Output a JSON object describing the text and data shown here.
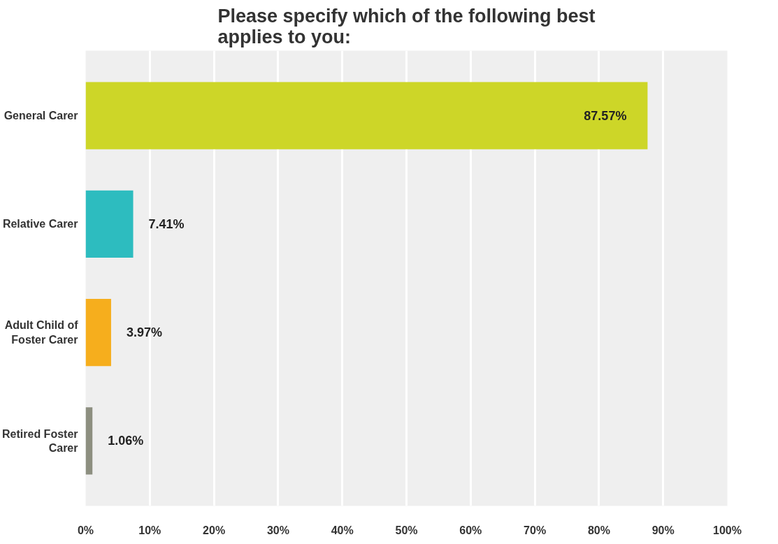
{
  "chart_data": {
    "type": "bar",
    "orientation": "horizontal",
    "title": "Please specify which of the following best applies to you:",
    "categories": [
      "General Carer",
      "Relative Carer",
      "Adult Child of Foster Carer",
      "Retired Foster Carer"
    ],
    "values": [
      87.57,
      7.41,
      3.97,
      1.06
    ],
    "colors": [
      "#cdd628",
      "#2dbcbf",
      "#f6ae1d",
      "#8d8f80"
    ],
    "value_labels": [
      "87.57%",
      "7.41%",
      "3.97%",
      "1.06%"
    ],
    "xlim": [
      0,
      100
    ],
    "xticks": [
      {
        "value": 0,
        "label": "0%"
      },
      {
        "value": 10,
        "label": "10%"
      },
      {
        "value": 20,
        "label": "20%"
      },
      {
        "value": 30,
        "label": "30%"
      },
      {
        "value": 40,
        "label": "40%"
      },
      {
        "value": 50,
        "label": "50%"
      },
      {
        "value": 60,
        "label": "60%"
      },
      {
        "value": 70,
        "label": "70%"
      },
      {
        "value": 80,
        "label": "80%"
      },
      {
        "value": 90,
        "label": "90%"
      },
      {
        "value": 100,
        "label": "100%"
      }
    ],
    "grid": "x"
  }
}
